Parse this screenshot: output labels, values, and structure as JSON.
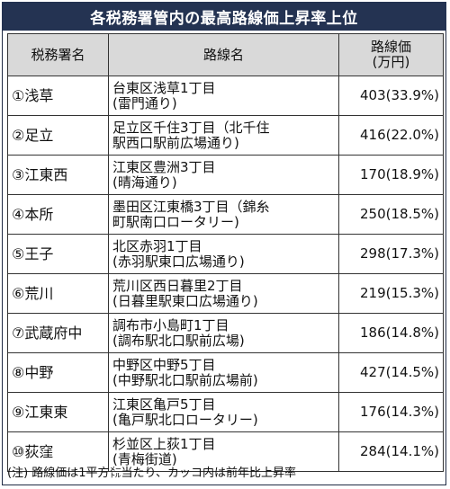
{
  "title": "各税務署管内の最高路線価上昇率上位",
  "headers": {
    "office": "税務署名",
    "route": "路線名",
    "price_line1": "路線価",
    "price_line2": "(万円)"
  },
  "rows": [
    {
      "office": "①浅草",
      "route1": "台東区浅草1丁目",
      "route2": "(雷門通り)",
      "price": "403(33.9%)"
    },
    {
      "office": "②足立",
      "route1": "足立区千住3丁目（北千住",
      "route2": "駅西口駅前広場通り)",
      "price": "416(22.0%)"
    },
    {
      "office": "③江東西",
      "route1": "江東区豊洲3丁目",
      "route2": "(晴海通り)",
      "price": "170(18.9%)"
    },
    {
      "office": "④本所",
      "route1": "墨田区江東橋3丁目（錦糸",
      "route2": "町駅南口ロータリー)",
      "price": "250(18.5%)"
    },
    {
      "office": "⑤王子",
      "route1": "北区赤羽1丁目",
      "route2": "(赤羽駅東口広場通り)",
      "price": "298(17.3%)"
    },
    {
      "office": "⑥荒川",
      "route1": "荒川区西日暮里2丁目",
      "route2": "(日暮里駅東口広場通り)",
      "price": "219(15.3%)"
    },
    {
      "office": "⑦武蔵府中",
      "route1": "調布市小島町1丁目",
      "route2": "(調布駅北口駅前広場)",
      "price": "186(14.8%)"
    },
    {
      "office": "⑧中野",
      "route1": "中野区中野5丁目",
      "route2": "(中野駅北口駅前広場前)",
      "price": "427(14.5%)"
    },
    {
      "office": "⑨江東東",
      "route1": "江東区亀戸5丁目",
      "route2": "(亀戸駅北口ロータリー)",
      "price": "176(14.3%)"
    },
    {
      "office": "⑩荻窪",
      "route1": "杉並区上荻1丁目",
      "route2": "(青梅街道)",
      "price": "284(14.1%)"
    }
  ],
  "note": "(注) 路線価は1平方㍍当たり、カッコ内は前年比上昇率"
}
